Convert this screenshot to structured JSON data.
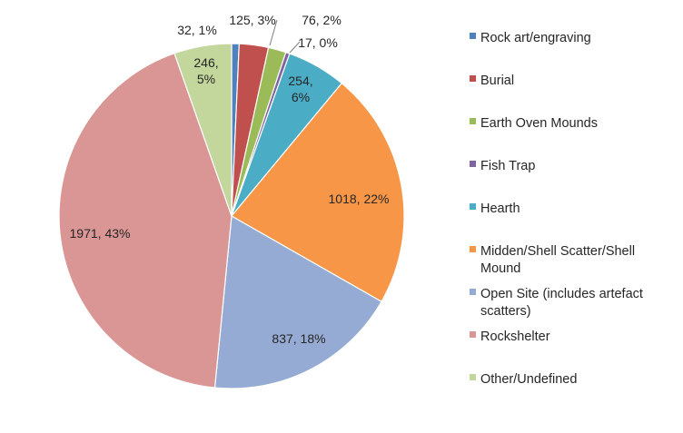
{
  "chart_data": {
    "type": "pie",
    "title": "",
    "legend_position": "right",
    "slices": [
      {
        "name": "Rock art/engraving",
        "value": 32,
        "percent_label": "1%",
        "label": "32, 1%",
        "color": "#4F81BD"
      },
      {
        "name": "Burial",
        "value": 125,
        "percent_label": "3%",
        "label": "125, 3%",
        "color": "#C0504D"
      },
      {
        "name": "Earth Oven Mounds",
        "value": 76,
        "percent_label": "2%",
        "label": "76, 2%",
        "color": "#9BBB59"
      },
      {
        "name": "Fish Trap",
        "value": 17,
        "percent_label": "0%",
        "label": "17, 0%",
        "color": "#8064A2"
      },
      {
        "name": "Hearth",
        "value": 254,
        "percent_label": "6%",
        "label": "254, 6%",
        "color": "#4BACC6"
      },
      {
        "name": "Midden/Shell Scatter/Shell Mound",
        "value": 1018,
        "percent_label": "22%",
        "label": "1018, 22%",
        "color": "#F79646"
      },
      {
        "name": "Open Site (includes artefact scatters)",
        "value": 837,
        "percent_label": "18%",
        "label": "837, 18%",
        "color": "#95ABD4"
      },
      {
        "name": "Rockshelter",
        "value": 1971,
        "percent_label": "43%",
        "label": "1971, 43%",
        "color": "#D99694"
      },
      {
        "name": "Other/Undefined",
        "value": 246,
        "percent_label": "5%",
        "label": "246, 5%",
        "color": "#C3D69B"
      }
    ]
  }
}
